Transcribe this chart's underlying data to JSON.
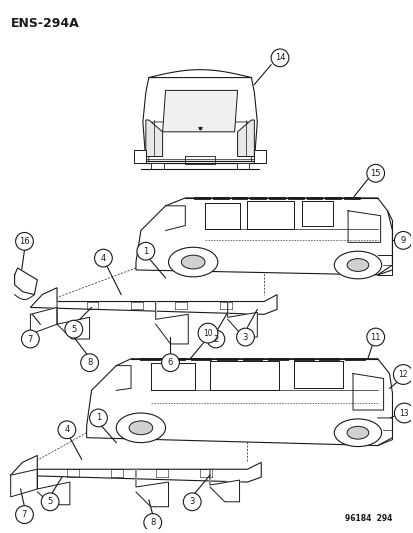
{
  "title": "ENS-294A",
  "background_color": "#ffffff",
  "line_color": "#1a1a1a",
  "figure_width": 4.14,
  "figure_height": 5.33,
  "dpi": 100,
  "watermark": "96184  294"
}
